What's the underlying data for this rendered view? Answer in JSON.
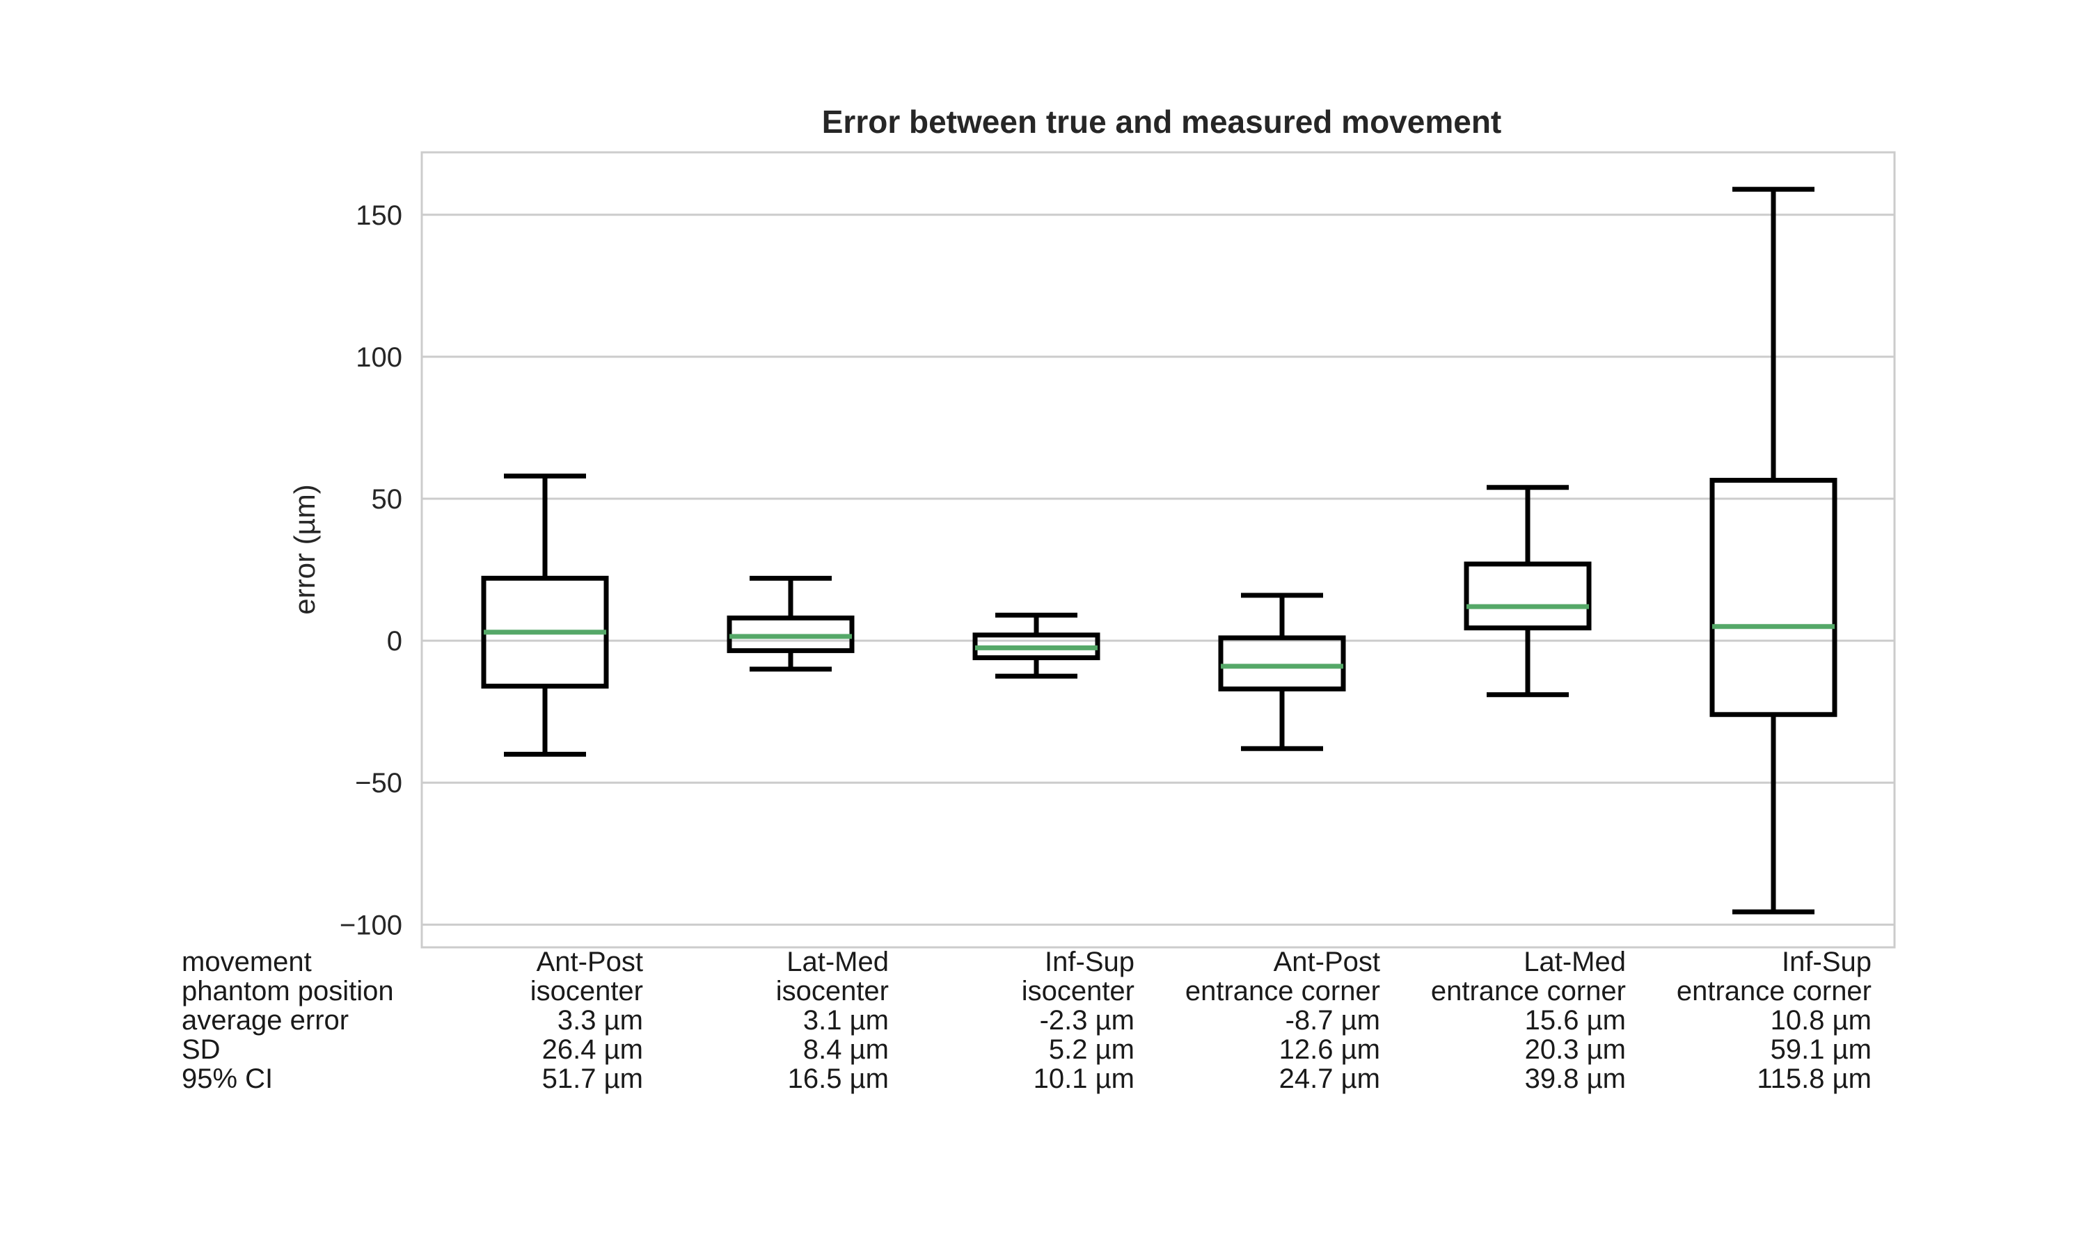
{
  "chart_data": {
    "type": "box",
    "title": "Error between true and measured movement",
    "ylabel": "error (µm)",
    "ylim": [
      -108,
      172
    ],
    "yticks": [
      150,
      100,
      50,
      0,
      -50,
      -100
    ],
    "ytick_labels": [
      "150",
      "100",
      "50",
      "0",
      "−50",
      "−100"
    ],
    "grid": true,
    "box_color": "#000000",
    "median_color": "#55a868",
    "boxes": [
      {
        "whisker_low": -40,
        "q1": -16,
        "median": 3,
        "q3": 22,
        "whisker_high": 58
      },
      {
        "whisker_low": -10,
        "q1": -3.5,
        "median": 1.5,
        "q3": 8,
        "whisker_high": 22
      },
      {
        "whisker_low": -12.5,
        "q1": -6,
        "median": -2.5,
        "q3": 2,
        "whisker_high": 9
      },
      {
        "whisker_low": -38,
        "q1": -17,
        "median": -9,
        "q3": 1,
        "whisker_high": 16
      },
      {
        "whisker_low": -19,
        "q1": 4.5,
        "median": 12,
        "q3": 27,
        "whisker_high": 54
      },
      {
        "whisker_low": -95.5,
        "q1": -26,
        "median": 5,
        "q3": 56.5,
        "whisker_high": 159
      }
    ],
    "table": {
      "row_labels": [
        "movement",
        "phantom position",
        "average error",
        "SD",
        "95% CI"
      ],
      "columns": [
        [
          "Ant-Post",
          "isocenter",
          "3.3 µm",
          "26.4 µm",
          "51.7 µm"
        ],
        [
          "Lat-Med",
          "isocenter",
          "3.1 µm",
          "8.4 µm",
          "16.5 µm"
        ],
        [
          "Inf-Sup",
          "isocenter",
          "-2.3 µm",
          "5.2 µm",
          "10.1 µm"
        ],
        [
          "Ant-Post",
          "entrance corner",
          "-8.7 µm",
          "12.6 µm",
          "24.7 µm"
        ],
        [
          "Lat-Med",
          "entrance corner",
          "15.6 µm",
          "20.3 µm",
          "39.8 µm"
        ],
        [
          "Inf-Sup",
          "entrance corner",
          "10.8 µm",
          "59.1 µm",
          "115.8 µm"
        ]
      ]
    }
  }
}
